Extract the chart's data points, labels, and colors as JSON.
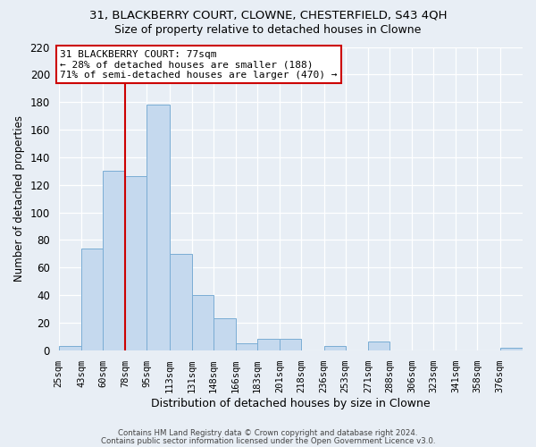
{
  "title": "31, BLACKBERRY COURT, CLOWNE, CHESTERFIELD, S43 4QH",
  "subtitle": "Size of property relative to detached houses in Clowne",
  "xlabel": "Distribution of detached houses by size in Clowne",
  "ylabel": "Number of detached properties",
  "bin_labels": [
    "25sqm",
    "43sqm",
    "60sqm",
    "78sqm",
    "95sqm",
    "113sqm",
    "131sqm",
    "148sqm",
    "166sqm",
    "183sqm",
    "201sqm",
    "218sqm",
    "236sqm",
    "253sqm",
    "271sqm",
    "288sqm",
    "306sqm",
    "323sqm",
    "341sqm",
    "358sqm",
    "376sqm"
  ],
  "bar_heights": [
    3,
    74,
    130,
    126,
    178,
    70,
    40,
    23,
    5,
    8,
    8,
    0,
    3,
    0,
    6,
    0,
    0,
    0,
    0,
    0,
    2
  ],
  "bar_color": "#c5d9ee",
  "bar_edge_color": "#7aadd4",
  "vline_x": 78,
  "vline_color": "#cc0000",
  "annotation_line1": "31 BLACKBERRY COURT: 77sqm",
  "annotation_line2": "← 28% of detached houses are smaller (188)",
  "annotation_line3": "71% of semi-detached houses are larger (470) →",
  "annotation_box_color": "#ffffff",
  "annotation_box_edge": "#cc0000",
  "ylim": [
    0,
    220
  ],
  "yticks": [
    0,
    20,
    40,
    60,
    80,
    100,
    120,
    140,
    160,
    180,
    200,
    220
  ],
  "bg_color": "#e8eef5",
  "footer_line1": "Contains HM Land Registry data © Crown copyright and database right 2024.",
  "footer_line2": "Contains public sector information licensed under the Open Government Licence v3.0.",
  "bin_edges": [
    25,
    43,
    60,
    78,
    95,
    113,
    131,
    148,
    166,
    183,
    201,
    218,
    236,
    253,
    271,
    288,
    306,
    323,
    341,
    358,
    376,
    394
  ]
}
